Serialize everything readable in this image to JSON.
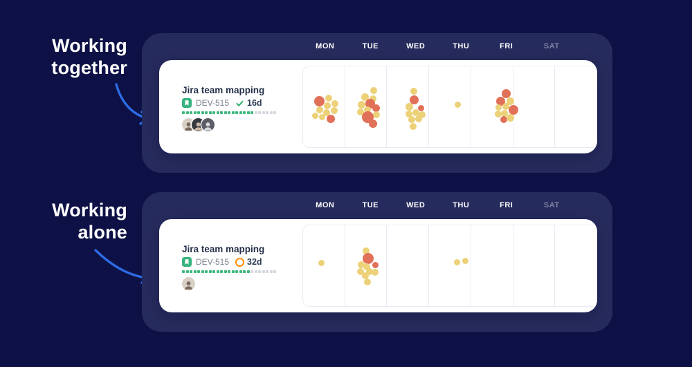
{
  "colors": {
    "page_bg": "#0d1145",
    "panel_bg": "#262b5d",
    "card_bg": "#ffffff",
    "accent_blue": "#2d6ce5",
    "dot_yellow": "#ecd178",
    "dot_red": "#e17058",
    "progress_green": "#3cb87c",
    "progress_gray": "#d4d7df",
    "type_icon_green": "#36b37e",
    "status_check_green": "#2cad6e",
    "status_ring_orange": "#ff8b00",
    "day_muted": "#7d82a2"
  },
  "annotations": {
    "together": {
      "line1": "Working",
      "line2": "together"
    },
    "alone": {
      "line1": "Working",
      "line2": "alone"
    }
  },
  "days": [
    "MON",
    "TUE",
    "WED",
    "THU",
    "FRI",
    "SAT"
  ],
  "cards": [
    {
      "annotation": "Working together",
      "task": {
        "title": "Jira team mapping",
        "key": "DEV-515",
        "status": "done",
        "duration": "16d"
      },
      "progress": {
        "total": 25,
        "filled": 19
      },
      "avatars": 3,
      "dots": [
        [
          [
            -9,
            -8,
            7.5,
            "r"
          ],
          [
            4,
            -13,
            5,
            "y"
          ],
          [
            13,
            -5,
            5,
            "y"
          ],
          [
            2,
            -2,
            5,
            "y"
          ],
          [
            12,
            5,
            5,
            "y"
          ],
          [
            -9,
            4,
            5,
            "y"
          ],
          [
            1,
            8,
            5,
            "y"
          ],
          [
            -15,
            13,
            4.5,
            "y"
          ],
          [
            -5,
            15,
            4.5,
            "y"
          ],
          [
            7,
            17,
            6,
            "r"
          ]
        ],
        [
          [
            4,
            -24,
            5,
            "y"
          ],
          [
            -9,
            -14,
            5.5,
            "y"
          ],
          [
            3,
            -12,
            5,
            "y"
          ],
          [
            -1,
            -5,
            7,
            "r"
          ],
          [
            -14,
            -3,
            5.5,
            "y"
          ],
          [
            7,
            2,
            5.5,
            "r"
          ],
          [
            -5,
            4,
            5,
            "y"
          ],
          [
            -15,
            7,
            5,
            "y"
          ],
          [
            8,
            11,
            5,
            "y"
          ],
          [
            -5,
            15,
            8.5,
            "r"
          ],
          [
            3,
            24,
            6,
            "r"
          ]
        ],
        [
          [
            -4,
            -23,
            5,
            "y"
          ],
          [
            -3,
            -10,
            6.7,
            "r"
          ],
          [
            -10,
            0,
            5.5,
            "y"
          ],
          [
            7,
            2,
            4.7,
            "r"
          ],
          [
            -1,
            8,
            5,
            "y"
          ],
          [
            8,
            11,
            5,
            "y"
          ],
          [
            -11,
            10,
            5,
            "y"
          ],
          [
            -7,
            18,
            5,
            "y"
          ],
          [
            3,
            17,
            5,
            "y"
          ],
          [
            -5,
            28,
            5,
            "y"
          ]
        ],
        [
          [
            -6,
            -3,
            4.5,
            "y"
          ]
        ],
        [
          [
            -1,
            -19,
            6.7,
            "r"
          ],
          [
            -9,
            -8,
            6.7,
            "r"
          ],
          [
            5,
            -8,
            5.5,
            "y"
          ],
          [
            -12,
            1,
            4.7,
            "y"
          ],
          [
            -2,
            -1,
            5,
            "y"
          ],
          [
            9,
            4,
            7,
            "r"
          ],
          [
            -13,
            10,
            5,
            "y"
          ],
          [
            -4,
            9,
            5,
            "y"
          ],
          [
            -5,
            18,
            5,
            "r"
          ],
          [
            5,
            16,
            5.5,
            "y"
          ]
        ],
        []
      ]
    },
    {
      "annotation": "Working alone",
      "task": {
        "title": "Jira team mapping",
        "key": "DEV-515",
        "status": "in-progress",
        "duration": "32d"
      },
      "progress": {
        "total": 25,
        "filled": 18
      },
      "avatars": 1,
      "dots": [
        [
          [
            -6,
            -4,
            4.5,
            "y"
          ]
        ],
        [
          [
            -7,
            -22,
            5,
            "y"
          ],
          [
            -4,
            -11,
            8,
            "r"
          ],
          [
            -14,
            -2,
            5,
            "y"
          ],
          [
            6,
            -1,
            4.7,
            "r"
          ],
          [
            -6,
            1,
            5,
            "y"
          ],
          [
            -15,
            8,
            5,
            "y"
          ],
          [
            -2,
            8,
            5,
            "y"
          ],
          [
            6,
            9,
            5,
            "y"
          ],
          [
            -8,
            14,
            5,
            "y"
          ],
          [
            -5,
            23,
            5,
            "y"
          ]
        ],
        [],
        [
          [
            -7,
            -5,
            4.5,
            "y"
          ],
          [
            5,
            -7,
            4.5,
            "y"
          ]
        ],
        [],
        []
      ]
    }
  ]
}
